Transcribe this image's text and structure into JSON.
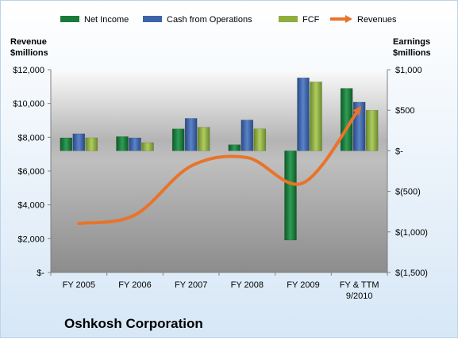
{
  "chart_data": {
    "type": "bar",
    "title": "Oshkosh Corporation",
    "categories": [
      [
        "FY 2005"
      ],
      [
        "FY 2006"
      ],
      [
        "FY 2007"
      ],
      [
        "FY 2008"
      ],
      [
        "FY 2009"
      ],
      [
        "FY & TTM",
        "9/2010"
      ]
    ],
    "left_axis": {
      "label_lines": [
        "Revenue",
        "$millions"
      ],
      "ylim": [
        0,
        12000
      ],
      "ticks": [
        {
          "value": 0,
          "label": "$-"
        },
        {
          "value": 2000,
          "label": "$2,000"
        },
        {
          "value": 4000,
          "label": "$4,000"
        },
        {
          "value": 6000,
          "label": "$6,000"
        },
        {
          "value": 8000,
          "label": "$8,000"
        },
        {
          "value": 10000,
          "label": "$10,000"
        },
        {
          "value": 12000,
          "label": "$12,000"
        }
      ]
    },
    "right_axis": {
      "label_lines": [
        "Earnings",
        "$millions"
      ],
      "ylim": [
        -1500,
        1000
      ],
      "ticks": [
        {
          "value": -1500,
          "label": "$(1,500)"
        },
        {
          "value": -1000,
          "label": "$(1,000)"
        },
        {
          "value": -500,
          "label": "$(500)"
        },
        {
          "value": 0,
          "label": "$-"
        },
        {
          "value": 500,
          "label": "$500"
        },
        {
          "value": 1000,
          "label": "$1,000"
        }
      ]
    },
    "series": [
      {
        "name": "Net Income",
        "axis": "right",
        "kind": "bar",
        "color": "#1a7a3c",
        "values": [
          160,
          175,
          270,
          75,
          -1100,
          770
        ]
      },
      {
        "name": "Cash from Operations",
        "axis": "right",
        "kind": "bar",
        "color": "#3d64a8",
        "values": [
          210,
          160,
          400,
          380,
          900,
          600
        ]
      },
      {
        "name": "FCF",
        "axis": "right",
        "kind": "bar",
        "color": "#8fae3c",
        "values": [
          160,
          100,
          290,
          270,
          850,
          500
        ]
      },
      {
        "name": "Revenues",
        "axis": "left",
        "kind": "line",
        "color": "#e8742a",
        "values": [
          2900,
          3400,
          6300,
          6800,
          5300,
          9700
        ]
      }
    ],
    "grid": false,
    "legend_position": "top"
  }
}
